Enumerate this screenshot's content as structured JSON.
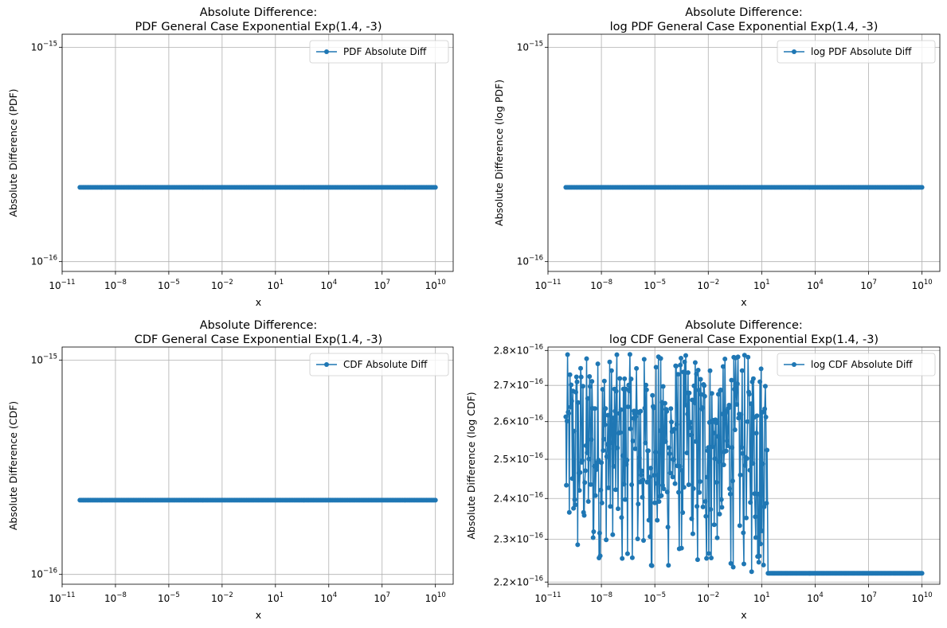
{
  "chart_data": [
    {
      "type": "line",
      "title_lines": [
        "Absolute Difference:",
        "PDF General Case Exponential Exp(1.4, -3)"
      ],
      "xlabel": "x",
      "ylabel": "Absolute Difference (PDF)",
      "x_scale": "log",
      "y_scale": "log",
      "xlim": [
        1e-11,
        100000000000.0
      ],
      "ylim": [
        9e-17,
        1.15e-15
      ],
      "x_ticks": [
        {
          "base": "10",
          "exp": "−11"
        },
        {
          "base": "10",
          "exp": "−8"
        },
        {
          "base": "10",
          "exp": "−5"
        },
        {
          "base": "10",
          "exp": "−2"
        },
        {
          "base": "10",
          "exp": "1"
        },
        {
          "base": "10",
          "exp": "4"
        },
        {
          "base": "10",
          "exp": "7"
        },
        {
          "base": "10",
          "exp": "10"
        }
      ],
      "y_ticks": [
        {
          "base": "10",
          "exp": "−15"
        },
        {
          "base": "10",
          "exp": "−16"
        }
      ],
      "grid": true,
      "legend_position": "top-right",
      "series": [
        {
          "name": "PDF Absolute Diff",
          "color": "#1f77b4",
          "marker": "circle",
          "x_range": [
            1e-10,
            10000000000.0
          ],
          "y_constant": 2.22e-16
        }
      ]
    },
    {
      "type": "line",
      "title_lines": [
        "Absolute Difference:",
        "log PDF General Case Exponential Exp(1.4, -3)"
      ],
      "xlabel": "x",
      "ylabel": "Absolute Difference (log PDF)",
      "x_scale": "log",
      "y_scale": "log",
      "xlim": [
        1e-11,
        100000000000.0
      ],
      "ylim": [
        9e-17,
        1.15e-15
      ],
      "x_ticks": [
        {
          "base": "10",
          "exp": "−11"
        },
        {
          "base": "10",
          "exp": "−8"
        },
        {
          "base": "10",
          "exp": "−5"
        },
        {
          "base": "10",
          "exp": "−2"
        },
        {
          "base": "10",
          "exp": "1"
        },
        {
          "base": "10",
          "exp": "4"
        },
        {
          "base": "10",
          "exp": "7"
        },
        {
          "base": "10",
          "exp": "10"
        }
      ],
      "y_ticks": [
        {
          "base": "10",
          "exp": "−15"
        },
        {
          "base": "10",
          "exp": "−16"
        }
      ],
      "grid": true,
      "legend_position": "top-right",
      "series": [
        {
          "name": "log PDF Absolute Diff",
          "color": "#1f77b4",
          "marker": "circle",
          "x_range": [
            1e-10,
            10000000000.0
          ],
          "y_constant": 2.22e-16
        }
      ]
    },
    {
      "type": "line",
      "title_lines": [
        "Absolute Difference:",
        "CDF General Case Exponential Exp(1.4, -3)"
      ],
      "xlabel": "x",
      "ylabel": "Absolute Difference (CDF)",
      "x_scale": "log",
      "y_scale": "log",
      "xlim": [
        1e-11,
        100000000000.0
      ],
      "ylim": [
        9e-17,
        1.15e-15
      ],
      "x_ticks": [
        {
          "base": "10",
          "exp": "−11"
        },
        {
          "base": "10",
          "exp": "−8"
        },
        {
          "base": "10",
          "exp": "−5"
        },
        {
          "base": "10",
          "exp": "−2"
        },
        {
          "base": "10",
          "exp": "1"
        },
        {
          "base": "10",
          "exp": "4"
        },
        {
          "base": "10",
          "exp": "7"
        },
        {
          "base": "10",
          "exp": "10"
        }
      ],
      "y_ticks": [
        {
          "base": "10",
          "exp": "−15"
        },
        {
          "base": "10",
          "exp": "−16"
        }
      ],
      "grid": true,
      "legend_position": "top-right",
      "series": [
        {
          "name": "CDF Absolute Diff",
          "color": "#1f77b4",
          "marker": "circle",
          "x_range": [
            1e-10,
            10000000000.0
          ],
          "y_constant": 2.22e-16
        }
      ]
    },
    {
      "type": "line",
      "title_lines": [
        "Absolute Difference:",
        "log CDF General Case Exponential Exp(1.4, -3)"
      ],
      "xlabel": "x",
      "ylabel": "Absolute Difference (log CDF)",
      "x_scale": "log",
      "y_scale": "log",
      "xlim": [
        1e-11,
        100000000000.0
      ],
      "ylim": [
        2.195e-16,
        2.81e-16
      ],
      "x_ticks": [
        {
          "base": "10",
          "exp": "−11"
        },
        {
          "base": "10",
          "exp": "−8"
        },
        {
          "base": "10",
          "exp": "−5"
        },
        {
          "base": "10",
          "exp": "−2"
        },
        {
          "base": "10",
          "exp": "1"
        },
        {
          "base": "10",
          "exp": "4"
        },
        {
          "base": "10",
          "exp": "7"
        },
        {
          "base": "10",
          "exp": "10"
        }
      ],
      "y_ticks": [
        {
          "base": "2.2×10",
          "exp": "−16"
        },
        {
          "base": "2.3×10",
          "exp": "−16"
        },
        {
          "base": "2.4×10",
          "exp": "−16"
        },
        {
          "base": "2.5×10",
          "exp": "−16"
        },
        {
          "base": "2.6×10",
          "exp": "−16"
        },
        {
          "base": "2.7×10",
          "exp": "−16"
        },
        {
          "base": "2.8×10",
          "exp": "−16"
        }
      ],
      "grid": true,
      "legend_position": "top-right",
      "series": [
        {
          "name": "log CDF Absolute Diff",
          "color": "#1f77b4",
          "marker": "circle",
          "x_range": [
            1e-10,
            10000000000.0
          ],
          "noisy_x_range": [
            1e-10,
            20
          ],
          "noisy_y_range": [
            2.22e-16,
            2.79e-16
          ],
          "y_constant": 2.22e-16
        }
      ]
    }
  ]
}
